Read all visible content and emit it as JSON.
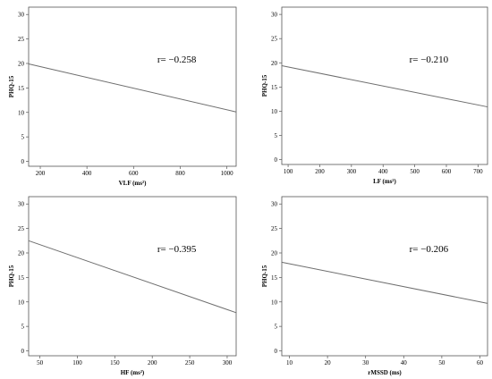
{
  "chart_data": [
    {
      "type": "line",
      "xlabel": "VLF (ms²)",
      "ylabel": "PHQ-15",
      "annotation": "r= −0.258",
      "xlim": [
        150,
        1040
      ],
      "ylim": [
        -1,
        31.5
      ],
      "xticks": [
        200,
        400,
        600,
        800,
        1000
      ],
      "yticks": [
        0,
        5,
        10,
        15,
        20,
        25,
        30
      ],
      "x": [
        150,
        1040
      ],
      "y": [
        19.9,
        10.1
      ]
    },
    {
      "type": "line",
      "xlabel": "LF (ms²)",
      "ylabel": "PHQ-15",
      "annotation": "r= −0.210",
      "xlim": [
        80,
        730
      ],
      "ylim": [
        -1,
        31.5
      ],
      "xticks": [
        100,
        200,
        300,
        400,
        500,
        600,
        700
      ],
      "yticks": [
        0,
        5,
        10,
        15,
        20,
        25,
        30
      ],
      "x": [
        80,
        730
      ],
      "y": [
        19.4,
        10.9
      ]
    },
    {
      "type": "line",
      "xlabel": "HF (ms²)",
      "ylabel": "PHQ-15",
      "annotation": "r= −0.395",
      "xlim": [
        35,
        312
      ],
      "ylim": [
        -1,
        31.5
      ],
      "xticks": [
        50,
        100,
        150,
        200,
        250,
        300
      ],
      "yticks": [
        0,
        5,
        10,
        15,
        20,
        25,
        30
      ],
      "x": [
        35,
        312
      ],
      "y": [
        22.5,
        7.8
      ]
    },
    {
      "type": "line",
      "xlabel": "rMSSD (ms)",
      "ylabel": "PHQ-15",
      "annotation": "r= −0.206",
      "xlim": [
        8,
        62
      ],
      "ylim": [
        -1,
        31.5
      ],
      "xticks": [
        10,
        20,
        30,
        40,
        50,
        60
      ],
      "yticks": [
        0,
        5,
        10,
        15,
        20,
        25,
        30
      ],
      "x": [
        8,
        62
      ],
      "y": [
        18.1,
        9.7
      ]
    }
  ]
}
